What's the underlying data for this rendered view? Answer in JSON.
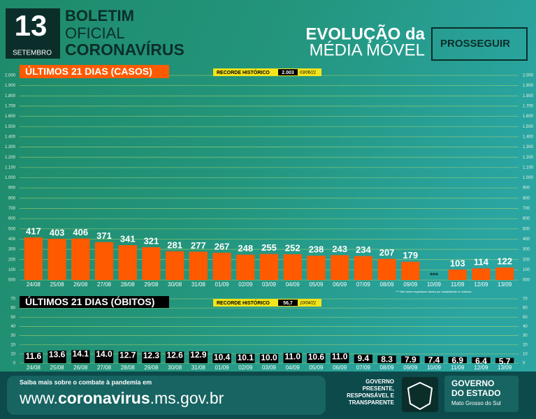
{
  "header": {
    "day": "13",
    "month": "SETEMBRO",
    "line1": "BOLETIM",
    "line2": "OFICIAL",
    "line3": "CORONAVÍRUS",
    "headline1": "EVOLUÇÃO da",
    "headline2": "MÉDIA MÓVEL",
    "program": "PROSSEGUIR"
  },
  "chart_data": [
    {
      "type": "bar",
      "title": "ÚLTIMOS 21 DIAS (CASOS)",
      "record_label": "RECORDE HISTÓRICO",
      "record_value": "2.003",
      "record_date": "03/06/21",
      "color": "#ff5a00",
      "categories": [
        "24/08",
        "25/08",
        "26/08",
        "27/08",
        "28/08",
        "29/08",
        "30/08",
        "31/08",
        "01/09",
        "02/09",
        "03/09",
        "04/09",
        "05/09",
        "06/09",
        "07/09",
        "08/09",
        "09/09",
        "10/09",
        "11/09",
        "12/09",
        "13/09"
      ],
      "values": [
        417,
        403,
        406,
        371,
        341,
        321,
        281,
        277,
        267,
        248,
        255,
        252,
        238,
        243,
        234,
        207,
        179,
        null,
        103,
        114,
        122
      ],
      "annotations": [
        "***",
        "*** Não foram registrados dados por instabilidade no sistema."
      ],
      "ylim": [
        0,
        2000
      ],
      "yticks": [
        {
          "value": 0,
          "label": "000"
        },
        100,
        200,
        300,
        400,
        500,
        600,
        700,
        800,
        900,
        {
          "value": 1000,
          "label": "1.000"
        },
        {
          "value": 1100,
          "label": "1.100"
        },
        {
          "value": 1200,
          "label": "1.200"
        },
        {
          "value": 1300,
          "label": "1.300"
        },
        {
          "value": 1400,
          "label": "1.400"
        },
        {
          "value": 1500,
          "label": "1.500"
        },
        {
          "value": 1600,
          "label": "1.600"
        },
        {
          "value": 1700,
          "label": "1.700"
        },
        {
          "value": 1800,
          "label": "1.800"
        },
        {
          "value": 1900,
          "label": "1.900"
        },
        {
          "value": 2000,
          "label": "2.000"
        }
      ],
      "grid": true
    },
    {
      "type": "bar",
      "title": "ÚLTIMOS 21 DIAS (ÓBITOS)",
      "record_label": "RECORDE HISTÓRICO",
      "record_value": "56,7",
      "record_date": "10/04/21",
      "color": "#000000",
      "categories": [
        "24/08",
        "25/08",
        "26/08",
        "27/08",
        "28/08",
        "29/08",
        "30/08",
        "31/08",
        "01/09",
        "02/09",
        "03/09",
        "04/09",
        "05/09",
        "06/09",
        "07/09",
        "08/09",
        "09/09",
        "10/09",
        "11/09",
        "12/09",
        "13/09"
      ],
      "values": [
        11.6,
        13.6,
        14.1,
        14.0,
        12.7,
        12.3,
        12.6,
        12.9,
        10.4,
        10.1,
        10.0,
        11.0,
        10.6,
        11.0,
        9.4,
        8.3,
        7.9,
        7.4,
        6.9,
        6.4,
        5.7
      ],
      "value_labels": [
        "11.6",
        "13.6",
        "14.1",
        "14.0",
        "12.7",
        "12.3",
        "12.6",
        "12.9",
        "10.4",
        "10.1",
        "10.0",
        "11.0",
        "10.6",
        "11.0",
        "9.4",
        "8.3",
        "7.9",
        "7.4",
        "6.9",
        "6.4",
        "5.7"
      ],
      "ylim": [
        0,
        70
      ],
      "yticks": [
        0,
        10,
        20,
        30,
        40,
        50,
        60,
        70
      ],
      "grid": true
    }
  ],
  "footer": {
    "intro": "Saiba mais sobre o combate à pandemia em",
    "url_a": "www.",
    "url_b": "coronavirus",
    "url_c": ".ms.gov.br",
    "slogan": [
      "GOVERNO",
      "PRESENTE,",
      "RESPONSÁVEL E",
      "TRANSPARENTE"
    ],
    "gov1": "GOVERNO",
    "gov2": "DO ESTADO",
    "state": "Mato Grosso do Sul"
  }
}
